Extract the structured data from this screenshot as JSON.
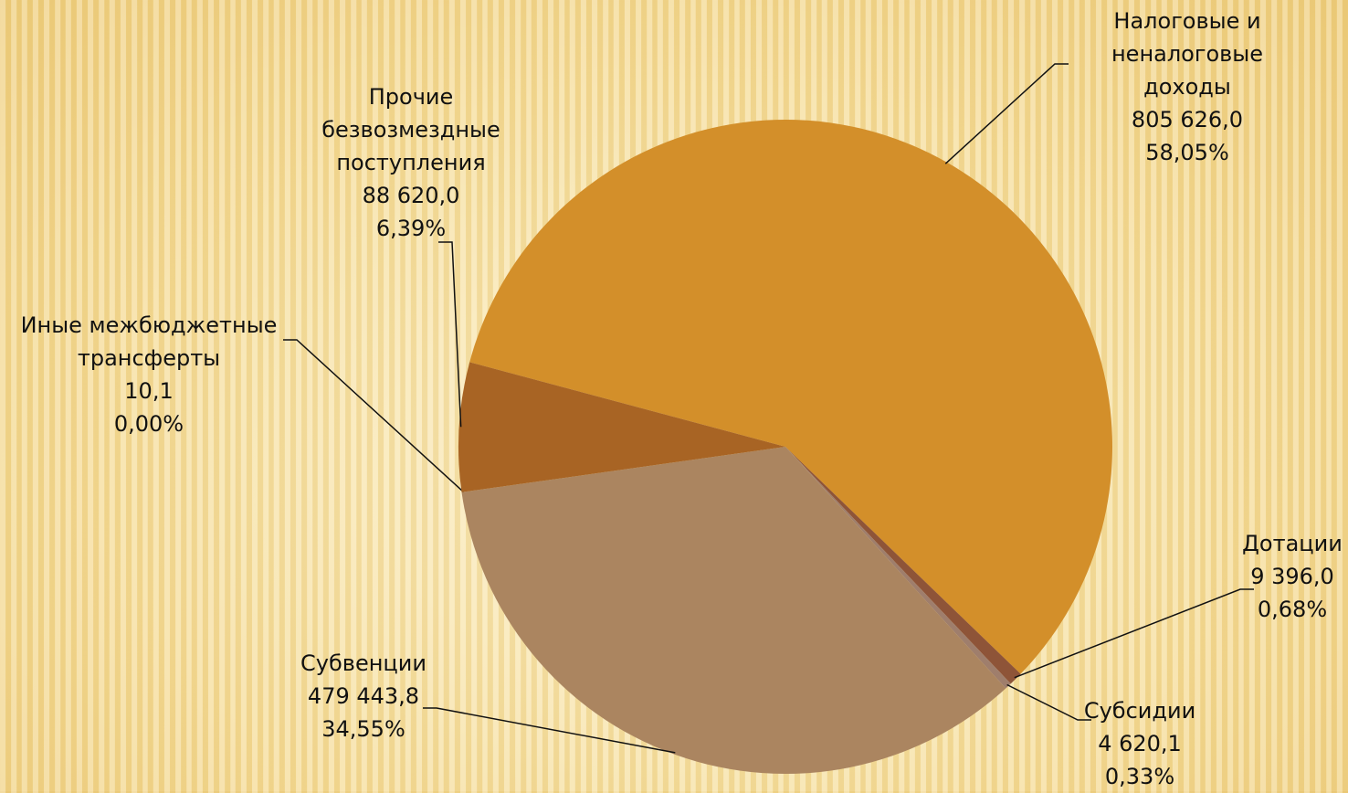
{
  "chart_data": {
    "type": "pie",
    "categories": [
      "Налоговые и\nненалоговые доходы",
      "Дотации",
      "Субсидии",
      "Субвенции",
      "Иные межбюджетные\nтрансферты",
      "Прочие\nбезвозмездные\nпоступления"
    ],
    "values": [
      805626.0,
      9396.0,
      4620.1,
      479443.8,
      10.1,
      88620.0
    ],
    "value_labels": [
      "805 626,0",
      "9 396,0",
      "4 620,1",
      "479 443,8",
      "10,1",
      "88 620,0"
    ],
    "percents": [
      58.05,
      0.68,
      0.33,
      34.55,
      0.0,
      6.39
    ],
    "percent_labels": [
      "58,05%",
      "0,68%",
      "0,33%",
      "34,55%",
      "0,00%",
      "6,39%"
    ],
    "colors": [
      "#d38f2a",
      "#8e5438",
      "#9f7e6c",
      "#ab8560",
      "#b07a50",
      "#a86424"
    ]
  }
}
